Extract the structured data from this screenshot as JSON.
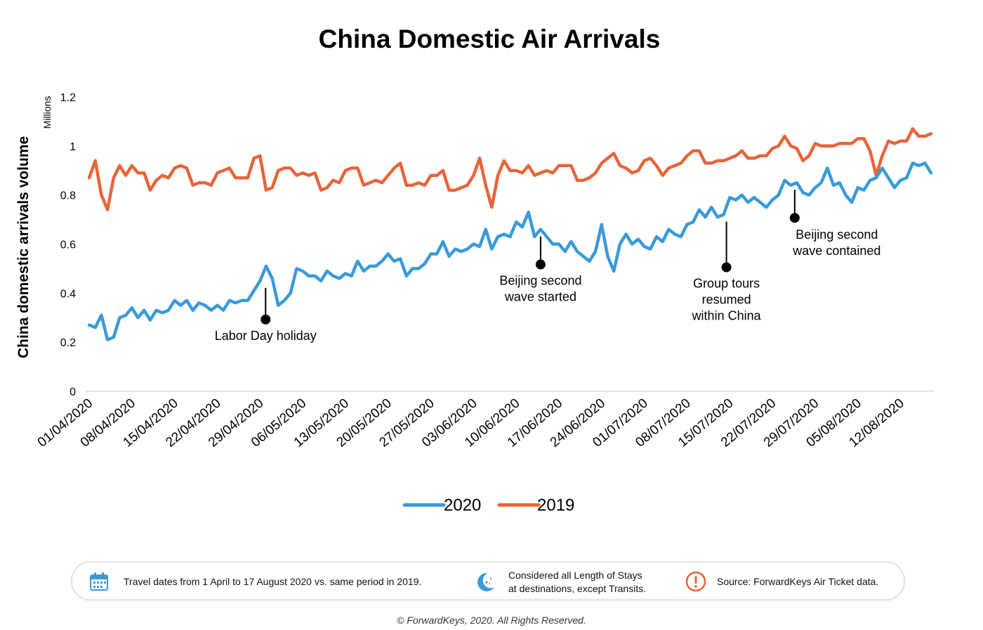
{
  "chart_data": {
    "type": "line",
    "title": "China Domestic Air Arrivals",
    "ylabel": "China domestic arrivals volume",
    "yunit": "Millions",
    "ylim": [
      0,
      1.2
    ],
    "yticks": [
      "0",
      "0.2",
      "0.4",
      "0.6",
      "0.8",
      "1",
      "1.2"
    ],
    "x_start": "01/04/2020",
    "x_tick_labels": [
      "01/04/2020",
      "08/04/2020",
      "15/04/2020",
      "22/04/2020",
      "29/04/2020",
      "06/05/2020",
      "13/05/2020",
      "20/05/2020",
      "27/05/2020",
      "03/06/2020",
      "10/06/2020",
      "17/06/2020",
      "24/06/2020",
      "01/07/2020",
      "08/07/2020",
      "15/07/2020",
      "22/07/2020",
      "29/07/2020",
      "05/08/2020",
      "12/08/2020"
    ],
    "grid": false,
    "legend_position": "bottom",
    "series": [
      {
        "name": "2020",
        "color": "#3a9ad9",
        "values": [
          0.27,
          0.26,
          0.31,
          0.21,
          0.22,
          0.3,
          0.31,
          0.34,
          0.3,
          0.33,
          0.29,
          0.33,
          0.32,
          0.33,
          0.37,
          0.35,
          0.37,
          0.33,
          0.36,
          0.35,
          0.33,
          0.35,
          0.33,
          0.37,
          0.36,
          0.37,
          0.37,
          0.41,
          0.45,
          0.51,
          0.46,
          0.35,
          0.37,
          0.4,
          0.5,
          0.49,
          0.47,
          0.47,
          0.45,
          0.49,
          0.47,
          0.46,
          0.48,
          0.47,
          0.53,
          0.49,
          0.51,
          0.51,
          0.53,
          0.56,
          0.53,
          0.54,
          0.47,
          0.5,
          0.5,
          0.52,
          0.56,
          0.56,
          0.61,
          0.55,
          0.58,
          0.57,
          0.58,
          0.6,
          0.59,
          0.66,
          0.58,
          0.63,
          0.64,
          0.63,
          0.69,
          0.67,
          0.73,
          0.63,
          0.66,
          0.63,
          0.6,
          0.6,
          0.57,
          0.61,
          0.57,
          0.55,
          0.53,
          0.57,
          0.68,
          0.55,
          0.49,
          0.6,
          0.64,
          0.6,
          0.62,
          0.59,
          0.58,
          0.63,
          0.61,
          0.66,
          0.64,
          0.63,
          0.68,
          0.69,
          0.74,
          0.71,
          0.75,
          0.71,
          0.72,
          0.79,
          0.78,
          0.8,
          0.77,
          0.79,
          0.77,
          0.75,
          0.78,
          0.8,
          0.86,
          0.84,
          0.85,
          0.81,
          0.8,
          0.83,
          0.85,
          0.91,
          0.84,
          0.85,
          0.8,
          0.77,
          0.83,
          0.82,
          0.86,
          0.87,
          0.91,
          0.87,
          0.83,
          0.86,
          0.87,
          0.93,
          0.92,
          0.93,
          0.89
        ]
      },
      {
        "name": "2019",
        "color": "#e8643a",
        "values": [
          0.87,
          0.94,
          0.8,
          0.74,
          0.87,
          0.92,
          0.88,
          0.92,
          0.89,
          0.89,
          0.82,
          0.86,
          0.88,
          0.87,
          0.91,
          0.92,
          0.91,
          0.84,
          0.85,
          0.85,
          0.84,
          0.89,
          0.9,
          0.91,
          0.87,
          0.87,
          0.87,
          0.95,
          0.96,
          0.82,
          0.83,
          0.9,
          0.91,
          0.91,
          0.88,
          0.89,
          0.88,
          0.89,
          0.82,
          0.83,
          0.86,
          0.85,
          0.9,
          0.91,
          0.91,
          0.84,
          0.85,
          0.86,
          0.85,
          0.88,
          0.91,
          0.93,
          0.84,
          0.84,
          0.85,
          0.84,
          0.88,
          0.88,
          0.9,
          0.82,
          0.82,
          0.83,
          0.84,
          0.88,
          0.95,
          0.84,
          0.75,
          0.88,
          0.94,
          0.9,
          0.9,
          0.89,
          0.92,
          0.88,
          0.89,
          0.9,
          0.89,
          0.92,
          0.92,
          0.92,
          0.86,
          0.86,
          0.87,
          0.89,
          0.93,
          0.95,
          0.97,
          0.92,
          0.91,
          0.89,
          0.9,
          0.94,
          0.95,
          0.92,
          0.88,
          0.91,
          0.92,
          0.93,
          0.96,
          0.98,
          0.98,
          0.93,
          0.93,
          0.94,
          0.94,
          0.95,
          0.96,
          0.98,
          0.95,
          0.95,
          0.96,
          0.96,
          0.99,
          1.0,
          1.04,
          1.0,
          0.99,
          0.94,
          0.96,
          1.01,
          1.0,
          1.0,
          1.0,
          1.01,
          1.01,
          1.01,
          1.03,
          1.03,
          0.98,
          0.88,
          0.96,
          1.02,
          1.01,
          1.02,
          1.02,
          1.07,
          1.04,
          1.04,
          1.05
        ]
      }
    ],
    "annotations": [
      {
        "id": "labor-day",
        "lines": [
          "Labor Day holiday"
        ],
        "series": "2020",
        "x_index": 28,
        "label_side": "below"
      },
      {
        "id": "beijing-start",
        "lines": [
          "Beijing second",
          "wave started"
        ],
        "series": "2020",
        "x_index": 74,
        "label_side": "below"
      },
      {
        "id": "group-tours",
        "lines": [
          "Group tours",
          "resumed",
          "within China"
        ],
        "series": "2020",
        "x_index": 104,
        "label_side": "below"
      },
      {
        "id": "beijing-contained",
        "lines": [
          "Beijing second",
          "wave contained"
        ],
        "series": "2020",
        "x_index": 116,
        "label_side": "below"
      }
    ]
  },
  "footer": {
    "note1": "Travel dates from 1 April to 17 August 2020 vs. same period in 2019.",
    "note2_line1": "Considered all Length of Stays",
    "note2_line2": "at destinations, except Transits.",
    "note3": "Source: ForwardKeys Air Ticket data.",
    "copyright": "© ForwardKeys, 2020. All Rights Reserved.",
    "icons": [
      "calendar-icon",
      "moon-stars-icon",
      "exclamation-icon"
    ],
    "icon_color_calendar": "#3a9ad9",
    "icon_color_moon": "#3a9ad9",
    "icon_color_alert": "#e8643a"
  }
}
